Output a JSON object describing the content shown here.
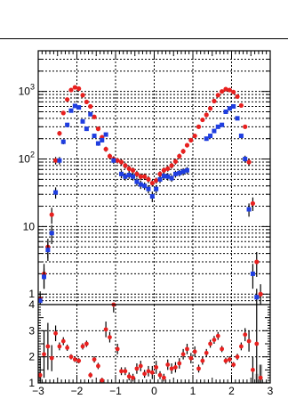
{
  "chart_data": [
    {
      "type": "scatter",
      "panel": "upper",
      "title": "",
      "xlabel": "",
      "ylabel": "",
      "xlim": [
        -3,
        3
      ],
      "ylim": [
        0.7,
        4000
      ],
      "y_scale": "log",
      "grid": true,
      "y_tick_labels": [
        {
          "value": 1,
          "label": "1"
        },
        {
          "value": 10,
          "label": "10"
        },
        {
          "value": 100,
          "label": "10",
          "exponent": "2"
        },
        {
          "value": 1000,
          "label": "10",
          "exponent": "3"
        }
      ],
      "colors": {
        "series_1": "#e8201f",
        "series_2": "#1f3ee0"
      },
      "series": [
        {
          "points": [
            {
              "x": -2.95,
              "y": 0.85,
              "err": 0.25
            },
            {
              "x": -2.85,
              "y": 2.0,
              "err": 0.8
            },
            {
              "x": -2.75,
              "y": 5.0,
              "err": 1.6
            },
            {
              "x": -2.65,
              "y": 15,
              "err": 4
            },
            {
              "x": -2.55,
              "y": 95,
              "err": 12
            },
            {
              "x": -2.45,
              "y": 240,
              "err": 20
            },
            {
              "x": -2.35,
              "y": 480,
              "err": 30
            },
            {
              "x": -2.25,
              "y": 760,
              "err": 40
            },
            {
              "x": -2.15,
              "y": 1050,
              "err": 50
            },
            {
              "x": -2.05,
              "y": 1150,
              "err": 50
            },
            {
              "x": -1.95,
              "y": 1100,
              "err": 50
            },
            {
              "x": -1.85,
              "y": 880,
              "err": 40
            },
            {
              "x": -1.75,
              "y": 700,
              "err": 35
            },
            {
              "x": -1.65,
              "y": 600,
              "err": 30
            },
            {
              "x": -1.55,
              "y": 420,
              "err": 25
            },
            {
              "x": -1.45,
              "y": 280,
              "err": 20
            },
            {
              "x": -1.35,
              "y": 210,
              "err": 15
            },
            {
              "x": -1.25,
              "y": 140,
              "err": 12
            },
            {
              "x": -1.15,
              "y": 110,
              "err": 10
            },
            {
              "x": -1.05,
              "y": 100,
              "err": 10
            },
            {
              "x": -0.95,
              "y": 95,
              "err": 9
            },
            {
              "x": -0.85,
              "y": 90,
              "err": 9
            },
            {
              "x": -0.75,
              "y": 80,
              "err": 8
            },
            {
              "x": -0.65,
              "y": 72,
              "err": 8
            },
            {
              "x": -0.55,
              "y": 68,
              "err": 7
            },
            {
              "x": -0.45,
              "y": 60,
              "err": 7
            },
            {
              "x": -0.35,
              "y": 55,
              "err": 6
            },
            {
              "x": -0.25,
              "y": 55,
              "err": 6
            },
            {
              "x": -0.15,
              "y": 50,
              "err": 6
            },
            {
              "x": -0.05,
              "y": 44,
              "err": 5
            },
            {
              "x": 0.05,
              "y": 48,
              "err": 5
            },
            {
              "x": 0.15,
              "y": 60,
              "err": 6
            },
            {
              "x": 0.25,
              "y": 68,
              "err": 7
            },
            {
              "x": 0.35,
              "y": 72,
              "err": 7
            },
            {
              "x": 0.45,
              "y": 80,
              "err": 8
            },
            {
              "x": 0.55,
              "y": 92,
              "err": 9
            },
            {
              "x": 0.65,
              "y": 110,
              "err": 10
            },
            {
              "x": 0.75,
              "y": 130,
              "err": 11
            },
            {
              "x": 0.85,
              "y": 160,
              "err": 12
            },
            {
              "x": 0.95,
              "y": 190,
              "err": 14
            },
            {
              "x": 1.05,
              "y": 220,
              "err": 15
            },
            {
              "x": 1.15,
              "y": 300,
              "err": 20
            },
            {
              "x": 1.25,
              "y": 380,
              "err": 22
            },
            {
              "x": 1.35,
              "y": 450,
              "err": 25
            },
            {
              "x": 1.45,
              "y": 560,
              "err": 30
            },
            {
              "x": 1.55,
              "y": 720,
              "err": 35
            },
            {
              "x": 1.65,
              "y": 880,
              "err": 40
            },
            {
              "x": 1.75,
              "y": 1000,
              "err": 45
            },
            {
              "x": 1.85,
              "y": 1080,
              "err": 50
            },
            {
              "x": 1.95,
              "y": 1050,
              "err": 50
            },
            {
              "x": 2.05,
              "y": 980,
              "err": 45
            },
            {
              "x": 2.15,
              "y": 840,
              "err": 40
            },
            {
              "x": 2.25,
              "y": 620,
              "err": 35
            },
            {
              "x": 2.35,
              "y": 300,
              "err": 20
            },
            {
              "x": 2.45,
              "y": 90,
              "err": 10
            },
            {
              "x": 2.55,
              "y": 22,
              "err": 5
            },
            {
              "x": 2.65,
              "y": 3.0,
              "err": 1.2
            },
            {
              "x": 2.75,
              "y": 1.0,
              "err": 0.4
            }
          ]
        },
        {
          "points": [
            {
              "x": -2.95,
              "y": 0.8,
              "err": 0.2
            },
            {
              "x": -2.85,
              "y": 1.8,
              "err": 0.6
            },
            {
              "x": -2.75,
              "y": 4.5,
              "err": 1.4
            },
            {
              "x": -2.65,
              "y": 8,
              "err": 2.5
            },
            {
              "x": -2.55,
              "y": 32,
              "err": 6
            },
            {
              "x": -2.45,
              "y": 95,
              "err": 12
            },
            {
              "x": -2.35,
              "y": 180,
              "err": 15
            },
            {
              "x": -2.25,
              "y": 320,
              "err": 20
            },
            {
              "x": -2.15,
              "y": 520,
              "err": 30
            },
            {
              "x": -2.05,
              "y": 610,
              "err": 35
            },
            {
              "x": -1.95,
              "y": 580,
              "err": 30
            },
            {
              "x": -1.85,
              "y": 360,
              "err": 22
            },
            {
              "x": -1.75,
              "y": 280,
              "err": 20
            },
            {
              "x": -1.65,
              "y": 460,
              "err": 25
            },
            {
              "x": -1.55,
              "y": 220,
              "err": 15
            },
            {
              "x": -1.45,
              "y": 170,
              "err": 13
            },
            {
              "x": -1.35,
              "y": 190,
              "err": 14
            },
            {
              "x": -1.25,
              "y": 230,
              "err": 15
            },
            {
              "x": -1.05,
              "y": 95,
              "err": 10
            },
            {
              "x": -0.85,
              "y": 60,
              "err": 8
            },
            {
              "x": -0.75,
              "y": 55,
              "err": 7
            },
            {
              "x": -0.65,
              "y": 58,
              "err": 7
            },
            {
              "x": -0.55,
              "y": 55,
              "err": 7
            },
            {
              "x": -0.45,
              "y": 46,
              "err": 6
            },
            {
              "x": -0.35,
              "y": 42,
              "err": 6
            },
            {
              "x": -0.25,
              "y": 40,
              "err": 5
            },
            {
              "x": -0.15,
              "y": 36,
              "err": 5
            },
            {
              "x": -0.05,
              "y": 28,
              "err": 5
            },
            {
              "x": 0.05,
              "y": 36,
              "err": 5
            },
            {
              "x": 0.15,
              "y": 50,
              "err": 6
            },
            {
              "x": 0.25,
              "y": 56,
              "err": 7
            },
            {
              "x": 0.35,
              "y": 55,
              "err": 7
            },
            {
              "x": 0.45,
              "y": 52,
              "err": 6
            },
            {
              "x": 0.55,
              "y": 60,
              "err": 7
            },
            {
              "x": 0.65,
              "y": 62,
              "err": 7
            },
            {
              "x": 0.75,
              "y": 65,
              "err": 8
            },
            {
              "x": 0.85,
              "y": 68,
              "err": 8
            },
            {
              "x": 1.35,
              "y": 200,
              "err": 14
            },
            {
              "x": 1.45,
              "y": 220,
              "err": 15
            },
            {
              "x": 1.55,
              "y": 260,
              "err": 18
            },
            {
              "x": 1.65,
              "y": 300,
              "err": 20
            },
            {
              "x": 1.75,
              "y": 320,
              "err": 20
            },
            {
              "x": 1.85,
              "y": 500,
              "err": 30
            },
            {
              "x": 1.95,
              "y": 560,
              "err": 30
            },
            {
              "x": 2.05,
              "y": 600,
              "err": 35
            },
            {
              "x": 2.15,
              "y": 400,
              "err": 25
            },
            {
              "x": 2.25,
              "y": 220,
              "err": 15
            },
            {
              "x": 2.35,
              "y": 100,
              "err": 12
            },
            {
              "x": 2.45,
              "y": 18,
              "err": 4
            },
            {
              "x": 2.55,
              "y": 2.0,
              "err": 0.8
            },
            {
              "x": 2.65,
              "y": 0.9,
              "err": 0.3
            }
          ]
        }
      ]
    },
    {
      "type": "scatter",
      "panel": "lower",
      "title": "",
      "xlabel": "",
      "ylabel": "",
      "xlim": [
        -3,
        3
      ],
      "ylim": [
        1,
        4
      ],
      "grid": true,
      "x_tick_labels": [
        "−3",
        "−2",
        "−1",
        "0",
        "1",
        "2",
        "3"
      ],
      "y_tick_labels": [
        "1",
        "2",
        "3",
        "4"
      ],
      "colors": {
        "series_1": "#e8201f",
        "band": "#c8c8c8",
        "errors": "#000000"
      },
      "band": [
        {
          "x": [
            -3.0,
            -2.9
          ],
          "y": 1.35
        },
        {
          "x": [
            -2.9,
            -2.8
          ],
          "y": 1.05
        },
        {
          "x": [
            2.6,
            2.7
          ],
          "y": 1.35
        },
        {
          "x": [
            2.7,
            2.8
          ],
          "y": 1.7
        },
        {
          "x": [
            2.8,
            3.0
          ],
          "y": 1.05
        }
      ],
      "series": [
        {
          "points": [
            {
              "x": -2.95,
              "y": 1.3,
              "err": 0.7
            },
            {
              "x": -2.85,
              "y": 2.1,
              "err": 0.9
            },
            {
              "x": -2.75,
              "y": 2.4,
              "err": 0.9
            },
            {
              "x": -2.65,
              "y": 1.95,
              "err": 0.5
            },
            {
              "x": -2.55,
              "y": 2.9,
              "err": 0.3
            },
            {
              "x": -2.45,
              "y": 2.4,
              "err": 0.15
            },
            {
              "x": -2.35,
              "y": 2.6,
              "err": 0.15
            },
            {
              "x": -2.25,
              "y": 2.35,
              "err": 0.12
            },
            {
              "x": -2.15,
              "y": 2.0,
              "err": 0.1
            },
            {
              "x": -2.05,
              "y": 1.9,
              "err": 0.1
            },
            {
              "x": -1.95,
              "y": 1.85,
              "err": 0.1
            },
            {
              "x": -1.85,
              "y": 2.4,
              "err": 0.12
            },
            {
              "x": -1.75,
              "y": 2.5,
              "err": 0.12
            },
            {
              "x": -1.65,
              "y": 1.3,
              "err": 0.1
            },
            {
              "x": -1.55,
              "y": 1.9,
              "err": 0.12
            },
            {
              "x": -1.45,
              "y": 1.65,
              "err": 0.12
            },
            {
              "x": -1.35,
              "y": 1.1,
              "err": 0.1
            },
            {
              "x": -1.25,
              "y": 3.05,
              "err": 0.3
            },
            {
              "x": -1.15,
              "y": 2.75,
              "err": 0.2
            },
            {
              "x": -1.05,
              "y": 4.0,
              "err": 0.3
            },
            {
              "x": -0.95,
              "y": 2.3,
              "err": 0.2
            },
            {
              "x": -0.85,
              "y": 1.45,
              "err": 0.15
            },
            {
              "x": -0.75,
              "y": 1.45,
              "err": 0.15
            },
            {
              "x": -0.65,
              "y": 1.25,
              "err": 0.15
            },
            {
              "x": -0.55,
              "y": 1.2,
              "err": 0.15
            },
            {
              "x": -0.45,
              "y": 1.55,
              "err": 0.2
            },
            {
              "x": -0.35,
              "y": 1.65,
              "err": 0.2
            },
            {
              "x": -0.25,
              "y": 1.35,
              "err": 0.15
            },
            {
              "x": -0.15,
              "y": 1.45,
              "err": 0.2
            },
            {
              "x": -0.05,
              "y": 1.4,
              "err": 0.25
            },
            {
              "x": 0.05,
              "y": 1.6,
              "err": 0.25
            },
            {
              "x": 0.15,
              "y": 1.3,
              "err": 0.15
            },
            {
              "x": 0.25,
              "y": 1.2,
              "err": 0.15
            },
            {
              "x": 0.35,
              "y": 1.7,
              "err": 0.2
            },
            {
              "x": 0.45,
              "y": 1.55,
              "err": 0.2
            },
            {
              "x": 0.55,
              "y": 1.6,
              "err": 0.2
            },
            {
              "x": 0.65,
              "y": 1.75,
              "err": 0.2
            },
            {
              "x": 0.75,
              "y": 2.1,
              "err": 0.2
            },
            {
              "x": 0.85,
              "y": 2.3,
              "err": 0.2
            },
            {
              "x": 0.95,
              "y": 1.95,
              "err": 0.2
            },
            {
              "x": 1.05,
              "y": 2.2,
              "err": 0.2
            },
            {
              "x": 1.15,
              "y": 1.55,
              "err": 0.15
            },
            {
              "x": 1.25,
              "y": 1.85,
              "err": 0.15
            },
            {
              "x": 1.35,
              "y": 2.15,
              "err": 0.15
            },
            {
              "x": 1.45,
              "y": 2.5,
              "err": 0.15
            },
            {
              "x": 1.55,
              "y": 2.65,
              "err": 0.15
            },
            {
              "x": 1.65,
              "y": 2.8,
              "err": 0.15
            },
            {
              "x": 1.75,
              "y": 2.3,
              "err": 0.12
            },
            {
              "x": 1.85,
              "y": 1.85,
              "err": 0.12
            },
            {
              "x": 1.95,
              "y": 1.9,
              "err": 0.12
            },
            {
              "x": 2.05,
              "y": 1.7,
              "err": 0.1
            },
            {
              "x": 2.15,
              "y": 2.0,
              "err": 0.12
            },
            {
              "x": 2.25,
              "y": 2.4,
              "err": 0.15
            },
            {
              "x": 2.35,
              "y": 2.85,
              "err": 0.25
            },
            {
              "x": 2.45,
              "y": 2.6,
              "err": 0.4
            },
            {
              "x": 2.55,
              "y": 1.5,
              "err": 0.5
            },
            {
              "x": 2.65,
              "y": 2.5,
              "err": 1.5
            },
            {
              "x": 2.75,
              "y": 1.2,
              "err": 0.5
            }
          ]
        }
      ]
    }
  ]
}
